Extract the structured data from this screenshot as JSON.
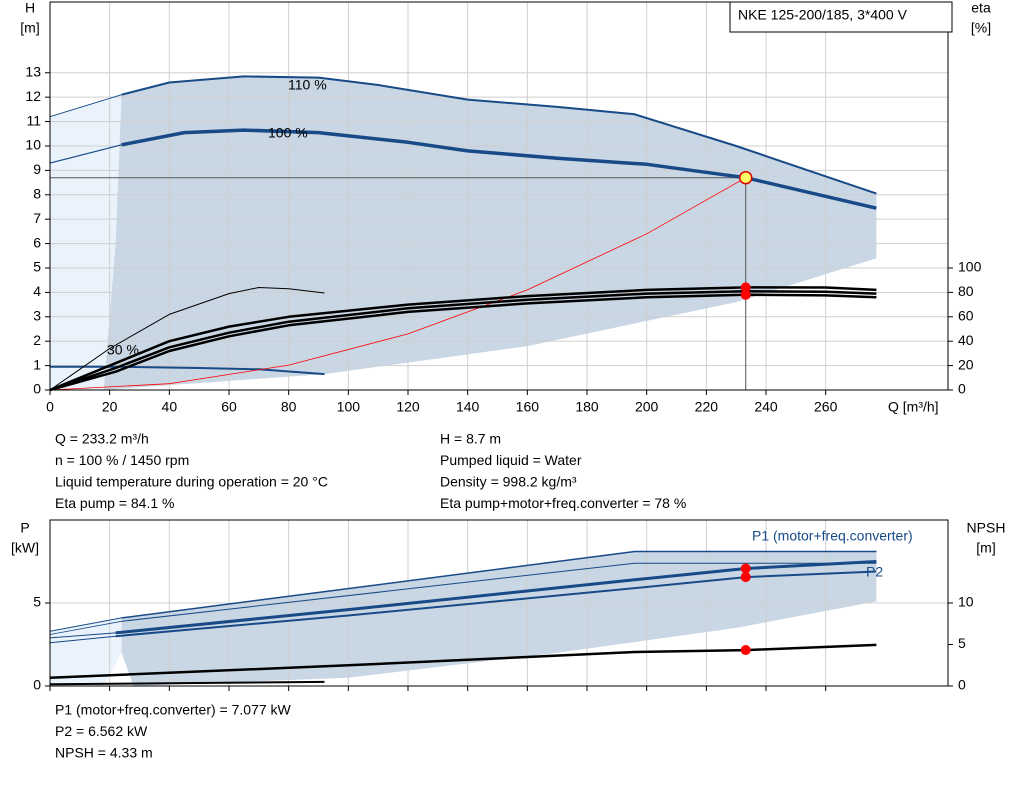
{
  "chart_data": [
    {
      "type": "line",
      "legend_text": "NKE 125-200/185, 3*400 V",
      "ylabel": [
        "H",
        "[m]"
      ],
      "y2label": [
        "eta",
        "[%]"
      ],
      "xlabel": "Q [m³/h]",
      "xlim": [
        0,
        301
      ],
      "xticks": [
        0,
        20,
        40,
        60,
        80,
        100,
        120,
        140,
        160,
        180,
        200,
        220,
        240,
        260
      ],
      "ylim": [
        0,
        15.9
      ],
      "yticks": [
        0,
        1,
        2,
        3,
        4,
        5,
        6,
        7,
        8,
        9,
        10,
        11,
        12,
        13
      ],
      "y2lim": [
        0,
        318
      ],
      "y2ticks": [
        0,
        20,
        40,
        60,
        80,
        100
      ],
      "grid": true,
      "xtick_labels": true,
      "curve_labels": [
        "110 %",
        "100 %",
        "30 %"
      ],
      "areas": [
        {
          "color": "#eaf3fc",
          "x": [
            0,
            24,
            23,
            18,
            0
          ],
          "values": [
            11.2,
            12.1,
            6,
            0,
            0
          ]
        },
        {
          "color": "#c9d6e4",
          "x": [
            24,
            40,
            65,
            90,
            110,
            140,
            170,
            196,
            230,
            277,
            277,
            230,
            160,
            92,
            40,
            18,
            22
          ],
          "values": [
            12.1,
            12.6,
            12.85,
            12.8,
            12.5,
            11.9,
            11.6,
            11.3,
            10.0,
            8.05,
            5.4,
            3.6,
            1.8,
            0.65,
            0.2,
            0,
            6
          ]
        }
      ],
      "series": [
        {
          "color": "#174a87",
          "width": 1,
          "x": [
            0,
            24
          ],
          "values": [
            11.2,
            12.1
          ]
        },
        {
          "color": "#174a87",
          "width": 2,
          "x": [
            24,
            40,
            65,
            90,
            110,
            140,
            170,
            196,
            230,
            277
          ],
          "values": [
            12.1,
            12.6,
            12.85,
            12.8,
            12.5,
            11.9,
            11.6,
            11.3,
            10.0,
            8.05
          ]
        },
        {
          "color": "#174a87",
          "width": 1.2,
          "x": [
            0,
            24
          ],
          "values": [
            9.3,
            10.05
          ]
        },
        {
          "color": "#174a87",
          "width": 3.5,
          "x": [
            24,
            45,
            65,
            90,
            120,
            140,
            170,
            200,
            233.2,
            277
          ],
          "values": [
            10.05,
            10.55,
            10.65,
            10.55,
            10.15,
            9.8,
            9.5,
            9.25,
            8.7,
            7.45
          ]
        },
        {
          "color": "#174a87",
          "width": 2,
          "x": [
            0,
            24,
            50,
            70,
            92
          ],
          "values": [
            0.95,
            0.95,
            0.9,
            0.85,
            0.65
          ]
        },
        {
          "color": "#ff0000",
          "width": 0.8,
          "x": [
            0,
            40,
            80,
            120,
            160,
            200,
            233.2
          ],
          "values": [
            0,
            0.26,
            1.02,
            2.3,
            4.1,
            6.4,
            8.7
          ]
        },
        {
          "color": "#000000",
          "width": 1,
          "axis": "y2",
          "x": [
            0,
            10,
            20,
            40,
            60,
            70,
            80,
            92
          ],
          "values": [
            0,
            17,
            34,
            62,
            79,
            84,
            83,
            79.5
          ]
        },
        {
          "color": "#000000",
          "width": 2.5,
          "axis": "y2",
          "x": [
            0,
            22,
            40,
            60,
            80,
            120,
            160,
            200,
            233.2,
            260,
            277
          ],
          "values": [
            0,
            22,
            40,
            52,
            60,
            70,
            77,
            82,
            84.1,
            84,
            82
          ]
        },
        {
          "color": "#000000",
          "width": 2.5,
          "axis": "y2",
          "x": [
            0,
            22,
            40,
            60,
            80,
            120,
            160,
            200,
            233.2,
            260,
            277
          ],
          "values": [
            0,
            18,
            35,
            47,
            56,
            67,
            74,
            79,
            81,
            80.5,
            79
          ]
        },
        {
          "color": "#000000",
          "width": 2.5,
          "axis": "y2",
          "x": [
            0,
            22,
            40,
            60,
            80,
            120,
            160,
            200,
            233.2,
            260,
            277
          ],
          "values": [
            0,
            15,
            32,
            44,
            53,
            64,
            71,
            76,
            78,
            77.5,
            76
          ]
        }
      ],
      "operating_point": {
        "x": 233.2,
        "y": 8.7,
        "color": "#ffff66"
      },
      "points": [
        {
          "x": 233.2,
          "y": 84.1,
          "axis": "y2",
          "color": "#ff0000"
        },
        {
          "x": 233.2,
          "y": 78,
          "axis": "y2",
          "color": "#ff0000"
        }
      ]
    },
    {
      "type": "line",
      "ylabel": [
        "P",
        "[kW]"
      ],
      "y2label": [
        "NPSH",
        "[m]"
      ],
      "xlim": [
        0,
        301
      ],
      "xticks": [
        0,
        20,
        40,
        60,
        80,
        100,
        120,
        140,
        160,
        180,
        200,
        220,
        240,
        260
      ],
      "ylim": [
        0,
        10
      ],
      "yticks": [
        0,
        5
      ],
      "y2lim": [
        0,
        20
      ],
      "y2ticks": [
        0,
        5,
        10
      ],
      "grid": true,
      "xtick_labels": false,
      "curve_labels": [
        "P1 (motor+freq.converter)",
        "P2"
      ],
      "areas": [
        {
          "color": "#eaf3fc",
          "x": [
            0,
            24,
            24,
            18,
            0
          ],
          "values": [
            3.3,
            4.1,
            2,
            0,
            0
          ]
        },
        {
          "color": "#c9d6e4",
          "x": [
            24,
            196,
            277,
            277,
            230,
            170,
            100,
            28,
            24
          ],
          "values": [
            4.1,
            8.1,
            8.1,
            5.1,
            3.5,
            2.0,
            0.5,
            0,
            2
          ]
        }
      ],
      "series": [
        {
          "color": "#174a87",
          "width": 1,
          "x": [
            0,
            24
          ],
          "values": [
            3.3,
            4.1
          ]
        },
        {
          "color": "#174a87",
          "width": 1.5,
          "x": [
            24,
            196,
            277
          ],
          "values": [
            4.1,
            8.1,
            8.1
          ]
        },
        {
          "color": "#174a87",
          "width": 0.8,
          "x": [
            0,
            24
          ],
          "values": [
            3.1,
            3.9
          ]
        },
        {
          "color": "#174a87",
          "width": 1,
          "x": [
            24,
            196,
            277
          ],
          "values": [
            3.9,
            7.4,
            7.4
          ]
        },
        {
          "color": "#174a87",
          "width": 1,
          "x": [
            0,
            22
          ],
          "values": [
            2.9,
            3.2
          ]
        },
        {
          "color": "#174a87",
          "width": 3,
          "x": [
            22,
            100,
            196,
            233.2,
            277
          ],
          "values": [
            3.2,
            4.6,
            6.4,
            7.077,
            7.5
          ]
        },
        {
          "color": "#174a87",
          "width": 1,
          "x": [
            0,
            22
          ],
          "values": [
            2.6,
            3.0
          ]
        },
        {
          "color": "#174a87",
          "width": 2,
          "x": [
            22,
            100,
            196,
            233.2,
            277
          ],
          "values": [
            3.0,
            4.25,
            5.9,
            6.562,
            6.9
          ]
        },
        {
          "color": "#000000",
          "width": 2.5,
          "axis": "y2",
          "x": [
            0,
            100,
            196,
            233.2,
            277
          ],
          "values": [
            1.0,
            2.5,
            4.1,
            4.33,
            4.95
          ]
        },
        {
          "color": "#000000",
          "width": 2,
          "axis": "y2",
          "x": [
            0,
            92
          ],
          "values": [
            0.2,
            0.5
          ]
        }
      ],
      "points": [
        {
          "x": 233.2,
          "y": 7.077,
          "color": "#ff0000"
        },
        {
          "x": 233.2,
          "y": 6.562,
          "color": "#ff0000"
        },
        {
          "x": 233.2,
          "y": 4.33,
          "axis": "y2",
          "color": "#ff0000"
        }
      ]
    }
  ],
  "info": {
    "left": [
      "Q = 233.2 m³/h",
      "n = 100 % / 1450 rpm",
      "Liquid temperature during operation = 20 °C",
      "Eta pump = 84.1 %"
    ],
    "right": [
      "H = 8.7 m",
      "Pumped liquid = Water",
      "Density = 998.2 kg/m³",
      "Eta pump+motor+freq.converter = 78 %"
    ],
    "bottom": [
      "P1 (motor+freq.converter) = 7.077 kW",
      "P2 = 6.562 kW",
      "NPSH = 4.33 m"
    ]
  }
}
